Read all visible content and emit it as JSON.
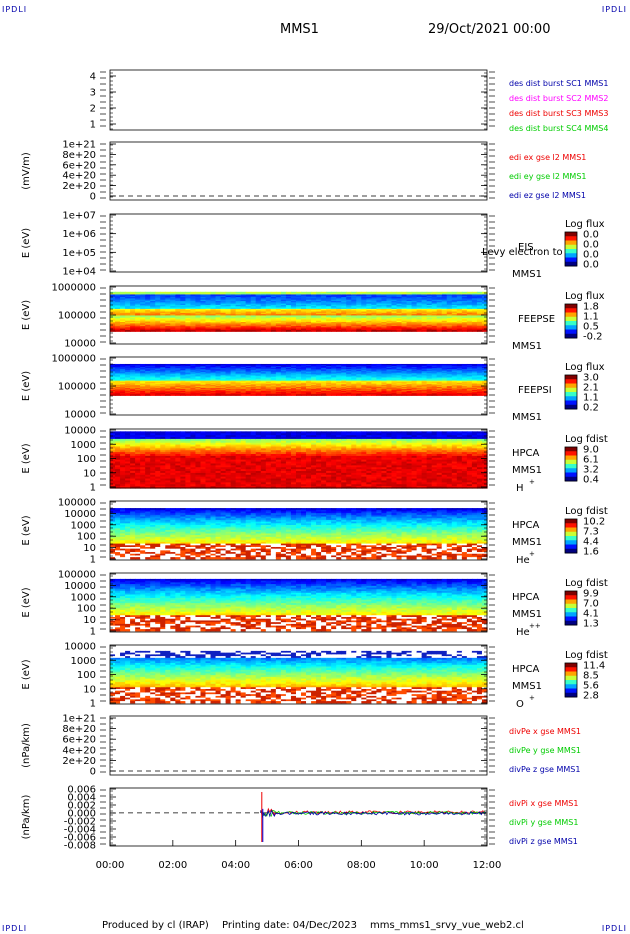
{
  "corner_labels": [
    "IPDLI",
    "IPDLI",
    "IPDLI",
    "IPDLI"
  ],
  "header": {
    "mission": "MMS1",
    "date": "29/Oct/2021 00:00"
  },
  "footer": {
    "produced_by": "Produced by cl (IRAP)",
    "printing_date": "Printing date: 04/Dec/2023",
    "script": "mms_mms1_srvy_vue_web2.cl"
  },
  "colors": {
    "dark_blue": "#0000aa",
    "magenta": "#ff00ff",
    "red": "#ee0000",
    "green": "#00cc00",
    "blue": "#0000dd"
  },
  "chart_data": [
    {
      "type": "line",
      "ylabel": "",
      "yticks": [
        "1",
        "2",
        "3",
        "4"
      ],
      "ylim": [
        0.5,
        4.5
      ],
      "series": [
        {
          "name": "des dist burst SC1 MMS1",
          "color": "#0000aa"
        },
        {
          "name": "des dist burst SC2 MMS2",
          "color": "#ff00ff"
        },
        {
          "name": "des dist burst SC3 MMS3",
          "color": "#ee0000"
        },
        {
          "name": "des dist burst SC4 MMS4",
          "color": "#00cc00"
        }
      ]
    },
    {
      "type": "line",
      "ylabel": "(mV/m)",
      "yticks": [
        "0",
        "2e+20",
        "4e+20",
        "6e+20",
        "8e+20",
        "1e+21"
      ],
      "zero_line": true,
      "series": [
        {
          "name": "edi ex gse l2 MMS1",
          "color": "#ee0000"
        },
        {
          "name": "edi ey gse l2 MMS1",
          "color": "#00cc00"
        },
        {
          "name": "edi ez gse l2 MMS1",
          "color": "#0000aa"
        }
      ]
    },
    {
      "type": "heatmap",
      "ylabel": "E (eV)",
      "yticks": [
        "1e+04",
        "1e+05",
        "1e+06",
        "1e+07"
      ],
      "labels": [
        "EIS",
        "MMS1"
      ],
      "overlay_text": "Levy electron to",
      "colorbar": {
        "title": "Log flux",
        "ticks": [
          "0.0",
          "0.0",
          "0.0",
          "0.0"
        ]
      }
    },
    {
      "type": "heatmap",
      "ylabel": "E (eV)",
      "yticks": [
        "10000",
        "100000",
        "1000000"
      ],
      "labels": [
        "FEEPSE",
        "MMS1"
      ],
      "colorbar": {
        "title": "Log flux",
        "ticks": [
          "1.8",
          "1.1",
          "0.5",
          "-0.2"
        ]
      }
    },
    {
      "type": "heatmap",
      "ylabel": "E (eV)",
      "yticks": [
        "10000",
        "100000",
        "1000000"
      ],
      "labels": [
        "FEEPSI",
        "MMS1"
      ],
      "colorbar": {
        "title": "Log flux",
        "ticks": [
          "3.0",
          "2.1",
          "1.1",
          "0.2"
        ]
      }
    },
    {
      "type": "heatmap",
      "ylabel": "E (eV)",
      "yticks": [
        "1",
        "10",
        "100",
        "1000",
        "10000"
      ],
      "labels": [
        "HPCA",
        "MMS1",
        "H",
        "+"
      ],
      "colorbar": {
        "title": "Log fdist",
        "ticks": [
          "9.0",
          "6.1",
          "3.2",
          "0.4"
        ]
      }
    },
    {
      "type": "heatmap",
      "ylabel": "E (eV)",
      "yticks": [
        "1",
        "10",
        "100",
        "1000",
        "10000",
        "100000"
      ],
      "labels": [
        "HPCA",
        "MMS1",
        "He",
        "+"
      ],
      "colorbar": {
        "title": "Log fdist",
        "ticks": [
          "10.2",
          "7.3",
          "4.4",
          "1.6"
        ]
      }
    },
    {
      "type": "heatmap",
      "ylabel": "E (eV)",
      "yticks": [
        "1",
        "10",
        "100",
        "1000",
        "10000",
        "100000"
      ],
      "labels": [
        "HPCA",
        "MMS1",
        "He",
        "++"
      ],
      "colorbar": {
        "title": "Log fdist",
        "ticks": [
          "9.9",
          "7.0",
          "4.1",
          "1.3"
        ]
      }
    },
    {
      "type": "heatmap",
      "ylabel": "E (eV)",
      "yticks": [
        "1",
        "10",
        "100",
        "1000",
        "10000"
      ],
      "labels": [
        "HPCA",
        "MMS1",
        "O",
        "+"
      ],
      "colorbar": {
        "title": "Log fdist",
        "ticks": [
          "11.4",
          "8.5",
          "5.6",
          "2.8"
        ]
      }
    },
    {
      "type": "line",
      "ylabel": "(nPa/km)",
      "yticks": [
        "0",
        "2e+20",
        "4e+20",
        "6e+20",
        "8e+20",
        "1e+21"
      ],
      "zero_line": true,
      "series": [
        {
          "name": "divPe x gse MMS1",
          "color": "#ee0000"
        },
        {
          "name": "divPe y gse MMS1",
          "color": "#00cc00"
        },
        {
          "name": "divPe z gse MMS1",
          "color": "#0000aa"
        }
      ]
    },
    {
      "type": "line",
      "ylabel": "(nPa/km)",
      "yticks": [
        "-0.008",
        "-0.006",
        "-0.004",
        "-0.002",
        "0.000",
        "0.002",
        "0.004",
        "0.006"
      ],
      "ylim": [
        -0.008,
        0.006
      ],
      "zero_line": true,
      "data_start": "04:48",
      "series": [
        {
          "name": "divPi x gse MMS1",
          "color": "#ee0000"
        },
        {
          "name": "divPi y gse MMS1",
          "color": "#00cc00"
        },
        {
          "name": "divPi z gse MMS1",
          "color": "#0000aa"
        }
      ]
    }
  ],
  "x_axis": {
    "ticks": [
      "00:00",
      "02:00",
      "04:00",
      "06:00",
      "08:00",
      "10:00",
      "12:00"
    ]
  }
}
